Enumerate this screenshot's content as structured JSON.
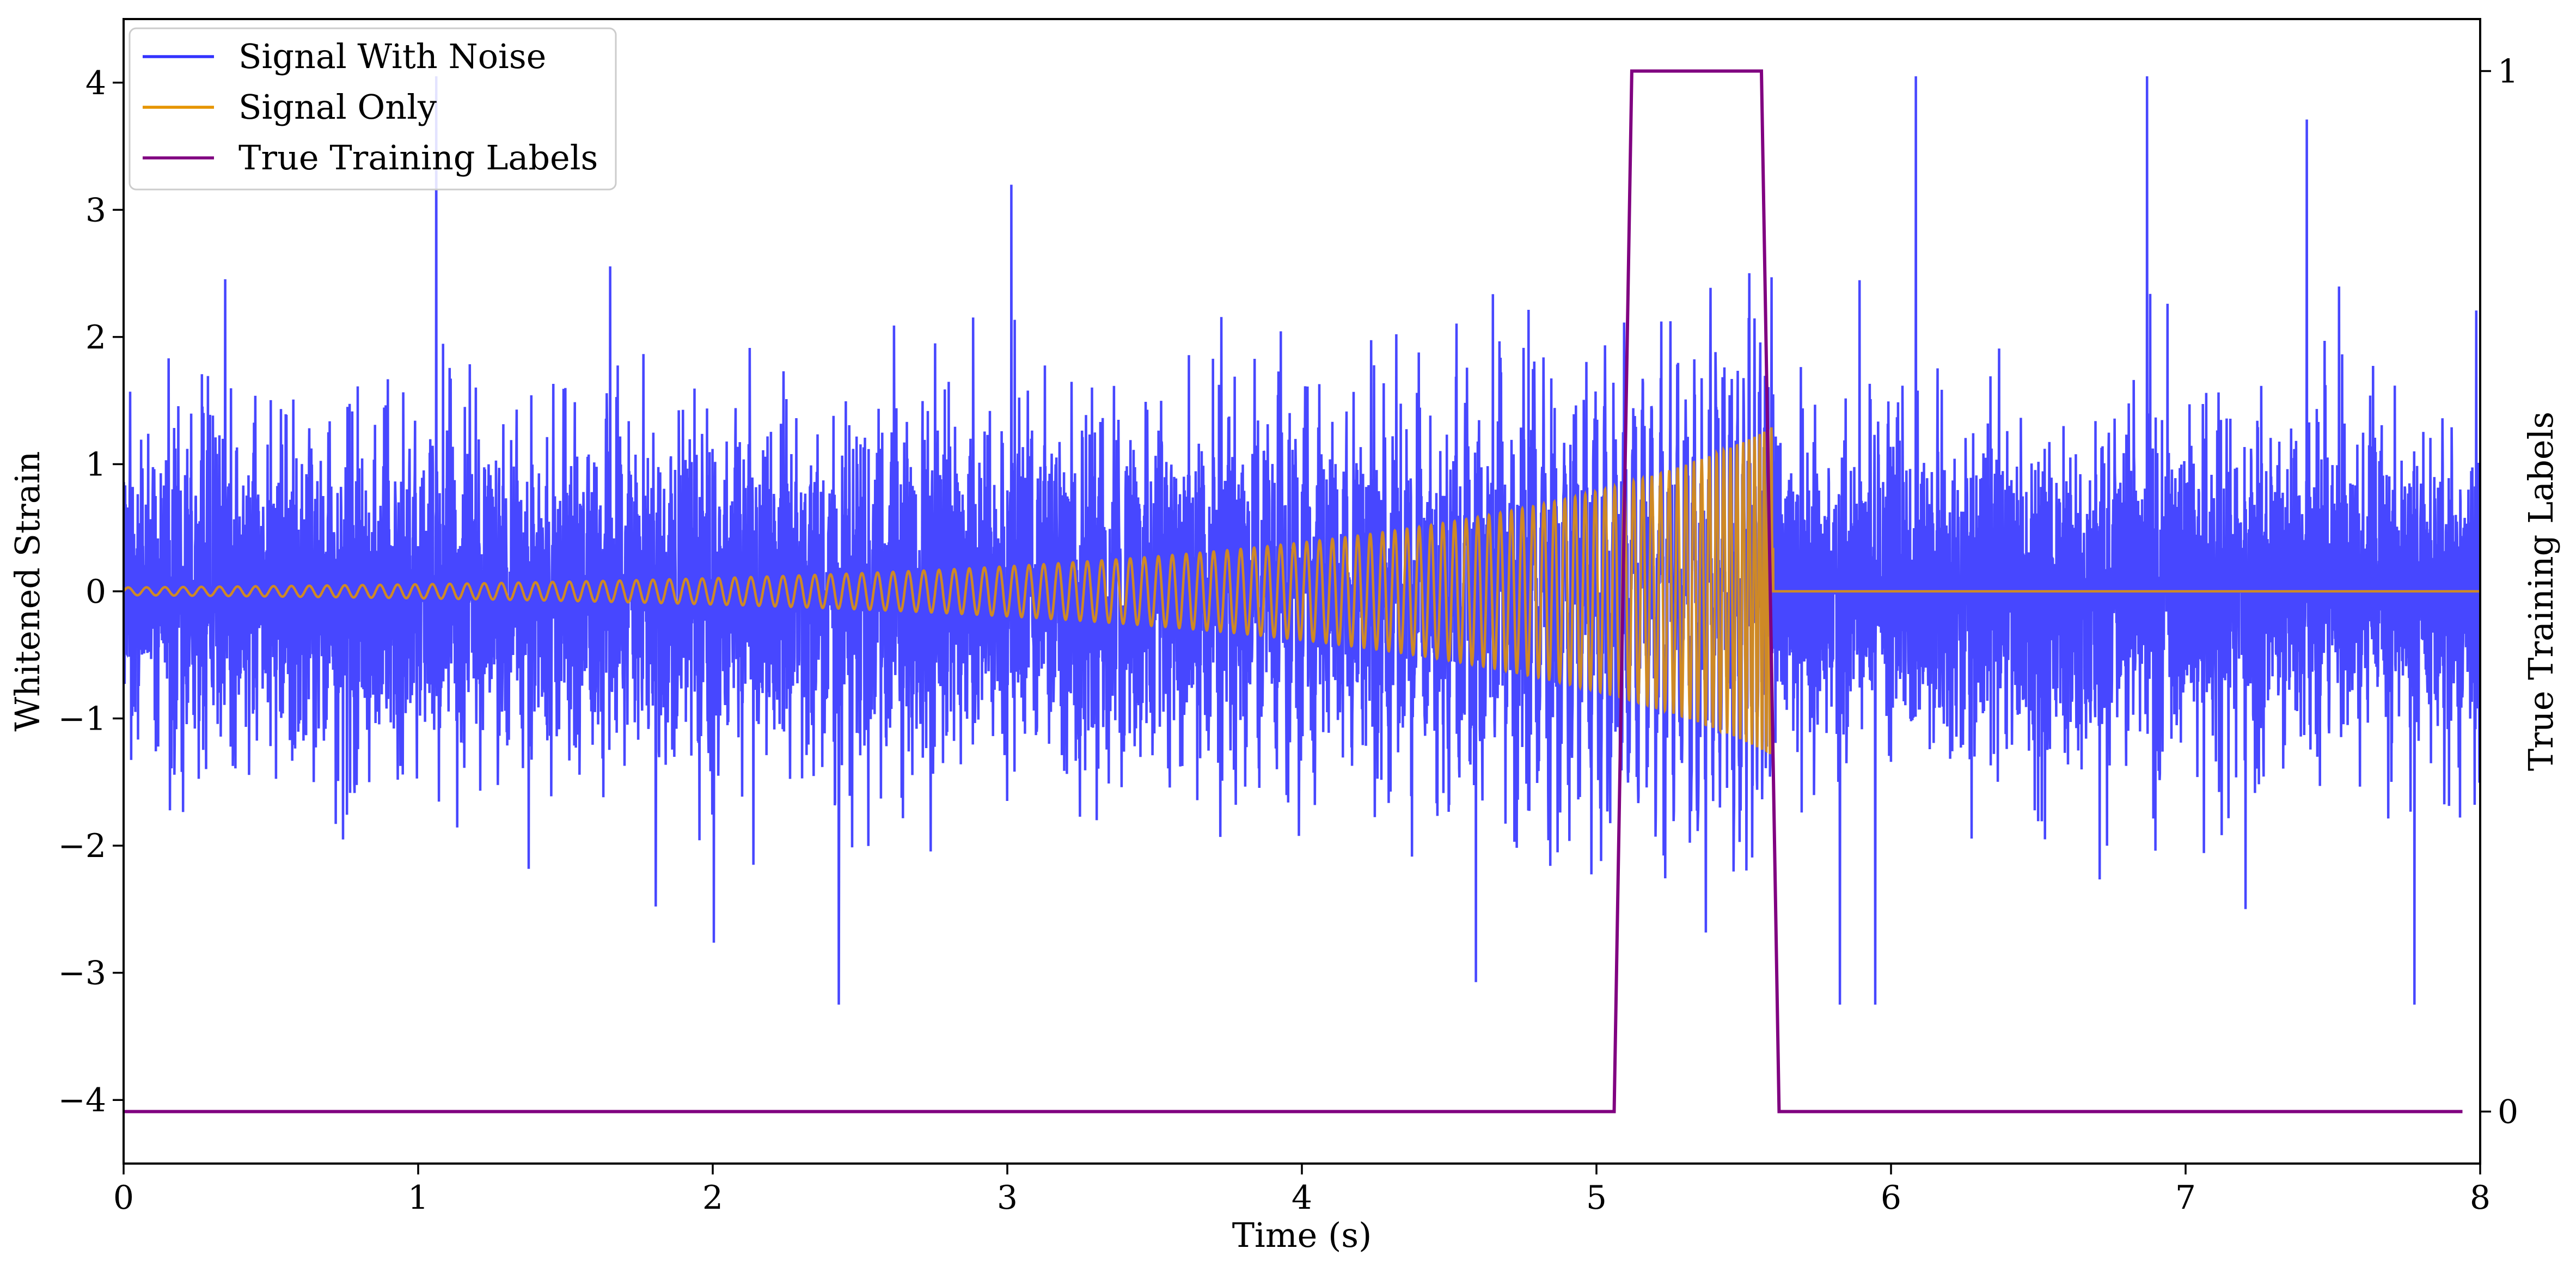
{
  "chart_data": {
    "type": "line",
    "title": "",
    "xlabel": "Time (s)",
    "ylabel": "Whitened Strain",
    "y2label": "True Training Labels",
    "xlim": [
      0,
      8
    ],
    "ylim": [
      -4.5,
      4.5
    ],
    "y2lim": [
      -0.05,
      1.05
    ],
    "x_ticks": [
      0,
      1,
      2,
      3,
      4,
      5,
      6,
      7,
      8
    ],
    "x_tick_labels": [
      "0",
      "1",
      "2",
      "3",
      "4",
      "5",
      "6",
      "7",
      "8"
    ],
    "y_ticks": [
      -4,
      -3,
      -2,
      -1,
      0,
      1,
      2,
      3,
      4
    ],
    "y_tick_labels": [
      "−4",
      "−3",
      "−2",
      "−1",
      "0",
      "1",
      "2",
      "3",
      "4"
    ],
    "y2_ticks": [
      0,
      1
    ],
    "y2_tick_labels": [
      "0",
      "1"
    ],
    "grid": false,
    "legend_position": "top-left",
    "series": [
      {
        "name": "Signal With Noise",
        "color": "#3333ff",
        "axis": "left",
        "description_stats": {
          "mean": 0.0,
          "typical_amplitude": 1.3,
          "max": 4.05,
          "min": -3.25
        }
      },
      {
        "name": "Signal Only",
        "color": "#e69500",
        "axis": "left",
        "chirp": {
          "start_time": 0.0,
          "merger_time": 5.6,
          "start_amplitude": 0.03,
          "peak_amplitude": 1.3,
          "start_frequency_hz": 16,
          "end_frequency_hz": 120,
          "value_after_merger": 0.0
        }
      },
      {
        "name": "True Training Labels",
        "color": "#800080",
        "axis": "right",
        "x": [
          0.0,
          5.06,
          5.12,
          5.56,
          5.62,
          7.94
        ],
        "y": [
          0,
          0,
          1,
          1,
          0,
          0
        ]
      }
    ]
  }
}
